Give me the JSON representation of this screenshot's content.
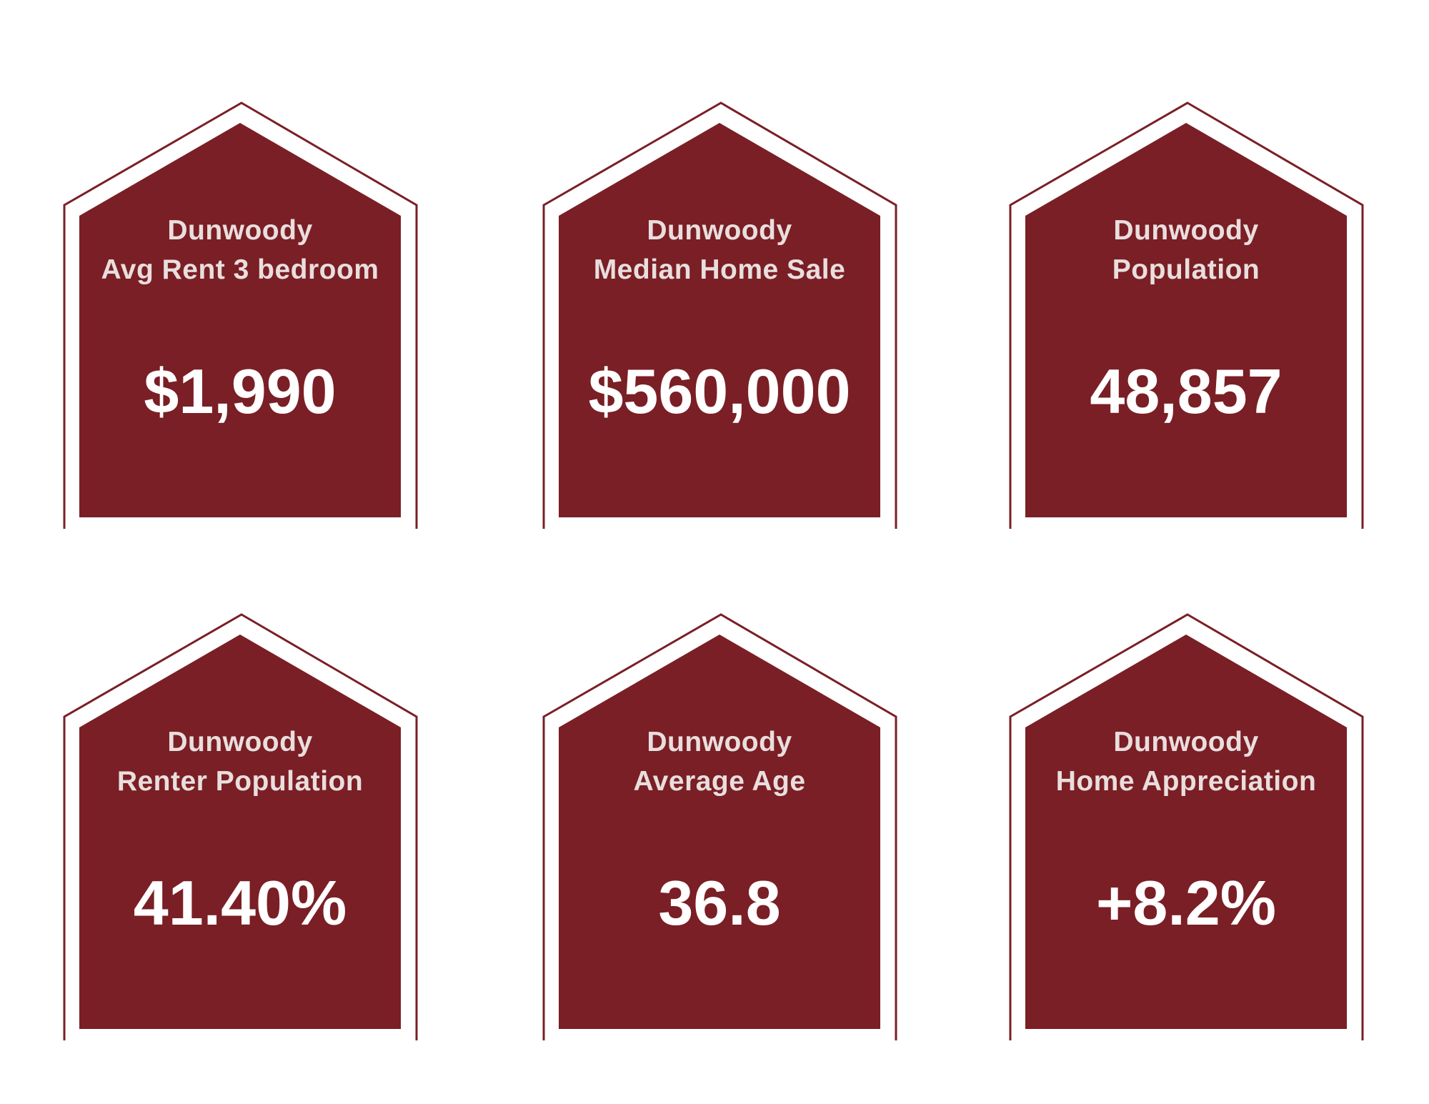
{
  "colors": {
    "house_fill": "#7a1f25",
    "house_outline": "#7a1f25",
    "title_text": "#e9dede",
    "value_text": "#ffffff",
    "background": "#ffffff"
  },
  "cards": [
    {
      "place": "Dunwoody",
      "metric": "Avg Rent 3 bedroom",
      "value": "$1,990"
    },
    {
      "place": "Dunwoody",
      "metric": "Median Home Sale",
      "value": "$560,000"
    },
    {
      "place": "Dunwoody",
      "metric": "Population",
      "value": "48,857"
    },
    {
      "place": "Dunwoody",
      "metric": "Renter Population",
      "value": "41.40%"
    },
    {
      "place": "Dunwoody",
      "metric": "Average Age",
      "value": "36.8"
    },
    {
      "place": "Dunwoody",
      "metric": "Home Appreciation",
      "value": "+8.2%"
    }
  ]
}
